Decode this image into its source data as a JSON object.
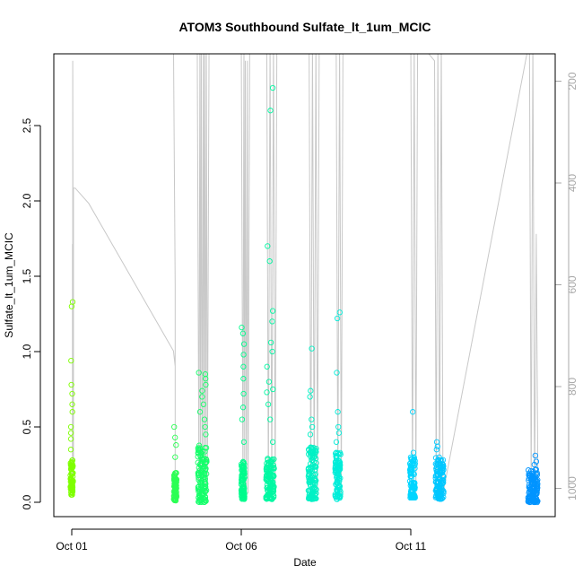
{
  "chart_data": {
    "type": "scatter",
    "title": "ATOM3 Southbound Sulfate_lt_1um_MCIC",
    "xlabel": "Date",
    "ylabel": "Sulfate_lt_1um_MCIC",
    "x_ticks": [
      "Oct 01",
      "Oct 06",
      "Oct 11"
    ],
    "x_range_days": [
      0.0,
      13.8
    ],
    "ylim": [
      0,
      2.8
    ],
    "y_ticks": [
      0.0,
      0.5,
      1.0,
      1.5,
      2.0,
      2.5
    ],
    "y_tick_labels": [
      "0.0",
      "0.5",
      "1.0",
      "1.5",
      "2.0",
      "2.5"
    ],
    "y2_ticks": [
      200,
      400,
      600,
      800,
      1000
    ],
    "y2_tick_labels": [
      "200",
      "400",
      "600",
      "800",
      "1000"
    ],
    "y2_range": [
      1010,
      120
    ],
    "grid": false,
    "marker": "open-circle",
    "color_gradient": [
      "#7fff00",
      "#00ff7f",
      "#00e5ff",
      "#0090ff"
    ],
    "line_color": "#c8c8c8",
    "clusters": [
      {
        "day": 0.0,
        "width": 0.04,
        "typical": [
          0.05,
          0.28
        ],
        "outliers": [
          0.35,
          0.42,
          0.46,
          0.5,
          0.6,
          0.65,
          0.72,
          0.78,
          0.94,
          1.3,
          1.33
        ]
      },
      {
        "day": 3.05,
        "width": 0.04,
        "typical": [
          0.01,
          0.2
        ],
        "outliers": [
          0.3,
          0.38,
          0.43,
          0.5
        ]
      },
      {
        "day": 3.85,
        "width": 0.13,
        "typical": [
          0.0,
          0.38
        ],
        "outliers": [
          0.45,
          0.5,
          0.55,
          0.6,
          0.65,
          0.7,
          0.74,
          0.78,
          0.82,
          0.85,
          0.86
        ]
      },
      {
        "day": 5.05,
        "width": 0.05,
        "typical": [
          0.02,
          0.28
        ],
        "outliers": [
          0.4,
          0.55,
          0.63,
          0.72,
          0.82,
          0.9,
          0.98,
          1.05,
          1.12,
          1.16
        ]
      },
      {
        "day": 5.85,
        "width": 0.12,
        "typical": [
          0.02,
          0.3
        ],
        "outliers": [
          0.4,
          0.55,
          0.65,
          0.73,
          0.75,
          0.8,
          0.9,
          1.0,
          1.06,
          1.2,
          1.27,
          1.6,
          1.7,
          2.6,
          2.75
        ]
      },
      {
        "day": 7.1,
        "width": 0.12,
        "typical": [
          0.02,
          0.38
        ],
        "outliers": [
          0.45,
          0.5,
          0.55,
          0.7,
          0.74,
          1.02
        ]
      },
      {
        "day": 7.85,
        "width": 0.08,
        "typical": [
          0.02,
          0.33
        ],
        "outliers": [
          0.4,
          0.46,
          0.5,
          0.6,
          0.86,
          1.22,
          1.26
        ]
      },
      {
        "day": 10.05,
        "width": 0.08,
        "typical": [
          0.03,
          0.3
        ],
        "outliers": [
          0.33,
          0.6
        ]
      },
      {
        "day": 10.85,
        "width": 0.12,
        "typical": [
          0.02,
          0.3
        ],
        "outliers": [
          0.35,
          0.37,
          0.4
        ]
      },
      {
        "day": 13.6,
        "width": 0.14,
        "typical": [
          0.0,
          0.22
        ],
        "outliers": [
          0.25,
          0.27,
          0.31
        ]
      }
    ],
    "altitude_series": {
      "name": "",
      "points": [
        [
          0.02,
          1010
        ],
        [
          0.02,
          520
        ],
        [
          0.03,
          1010
        ],
        [
          0.03,
          160
        ],
        [
          0.05,
          1010
        ],
        [
          0.05,
          410
        ],
        [
          0.1,
          410
        ],
        [
          0.5,
          440
        ],
        [
          3.0,
          730
        ],
        [
          3.05,
          760
        ],
        [
          3.05,
          1010
        ],
        [
          3.05,
          600
        ],
        [
          3.0,
          120
        ],
        [
          3.7,
          120
        ],
        [
          3.75,
          1010
        ],
        [
          3.78,
          130
        ],
        [
          3.8,
          1010
        ],
        [
          3.82,
          130
        ],
        [
          3.85,
          1010
        ],
        [
          3.88,
          130
        ],
        [
          3.9,
          1010
        ],
        [
          3.92,
          130
        ],
        [
          3.95,
          1010
        ],
        [
          3.97,
          130
        ],
        [
          4.0,
          1010
        ],
        [
          4.05,
          120
        ],
        [
          5.0,
          120
        ],
        [
          5.05,
          1010
        ],
        [
          5.08,
          120
        ],
        [
          5.1,
          1010
        ],
        [
          5.12,
          160
        ],
        [
          5.15,
          1010
        ],
        [
          5.18,
          160
        ],
        [
          5.2,
          1010
        ],
        [
          5.25,
          120
        ],
        [
          5.75,
          120
        ],
        [
          5.8,
          1010
        ],
        [
          5.85,
          120
        ],
        [
          5.9,
          1010
        ],
        [
          5.95,
          120
        ],
        [
          6.0,
          1010
        ],
        [
          6.05,
          120
        ],
        [
          7.0,
          120
        ],
        [
          7.05,
          1010
        ],
        [
          7.1,
          120
        ],
        [
          7.15,
          1010
        ],
        [
          7.2,
          120
        ],
        [
          7.25,
          1010
        ],
        [
          7.3,
          120
        ],
        [
          7.8,
          120
        ],
        [
          7.85,
          1010
        ],
        [
          7.9,
          120
        ],
        [
          7.95,
          1010
        ],
        [
          8.0,
          120
        ],
        [
          10.0,
          120
        ],
        [
          10.05,
          1010
        ],
        [
          10.1,
          120
        ],
        [
          10.15,
          1010
        ],
        [
          10.2,
          120
        ],
        [
          10.7,
          160
        ],
        [
          10.75,
          1010
        ],
        [
          10.8,
          120
        ],
        [
          10.85,
          1010
        ],
        [
          10.9,
          120
        ],
        [
          10.95,
          1010
        ],
        [
          13.5,
          120
        ],
        [
          13.55,
          1010
        ],
        [
          13.6,
          120
        ],
        [
          13.65,
          1010
        ],
        [
          13.7,
          500
        ],
        [
          13.75,
          1010
        ]
      ]
    }
  }
}
